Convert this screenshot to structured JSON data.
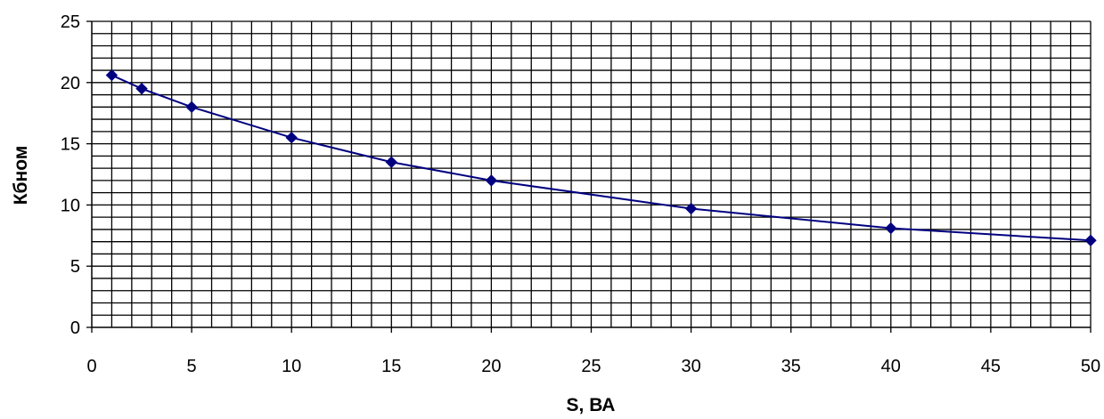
{
  "chart_data": {
    "type": "line",
    "title": "",
    "xlabel": "S, ВА",
    "ylabel": "Кбном",
    "xlim": [
      0,
      50
    ],
    "ylim": [
      0,
      25
    ],
    "xticks": [
      0,
      5,
      10,
      15,
      20,
      25,
      30,
      35,
      40,
      45,
      50
    ],
    "yticks": [
      0,
      5,
      10,
      15,
      20,
      25
    ],
    "xtick_labels": [
      "0",
      "5",
      "10",
      "15",
      "20",
      "25",
      "30",
      "35",
      "40",
      "45",
      "50"
    ],
    "ytick_labels": [
      "0",
      "5",
      "10",
      "15",
      "20",
      "25"
    ],
    "grid": true,
    "grid_minor_x_step": 1,
    "grid_minor_y_step": 1,
    "legend": "none",
    "series": [
      {
        "color": "#000080",
        "marker": "diamond",
        "x": [
          1,
          2.5,
          5,
          10,
          15,
          20,
          30,
          40,
          50
        ],
        "y": [
          20.6,
          19.5,
          18.0,
          15.5,
          13.5,
          12.0,
          9.7,
          8.1,
          7.1
        ]
      }
    ]
  }
}
